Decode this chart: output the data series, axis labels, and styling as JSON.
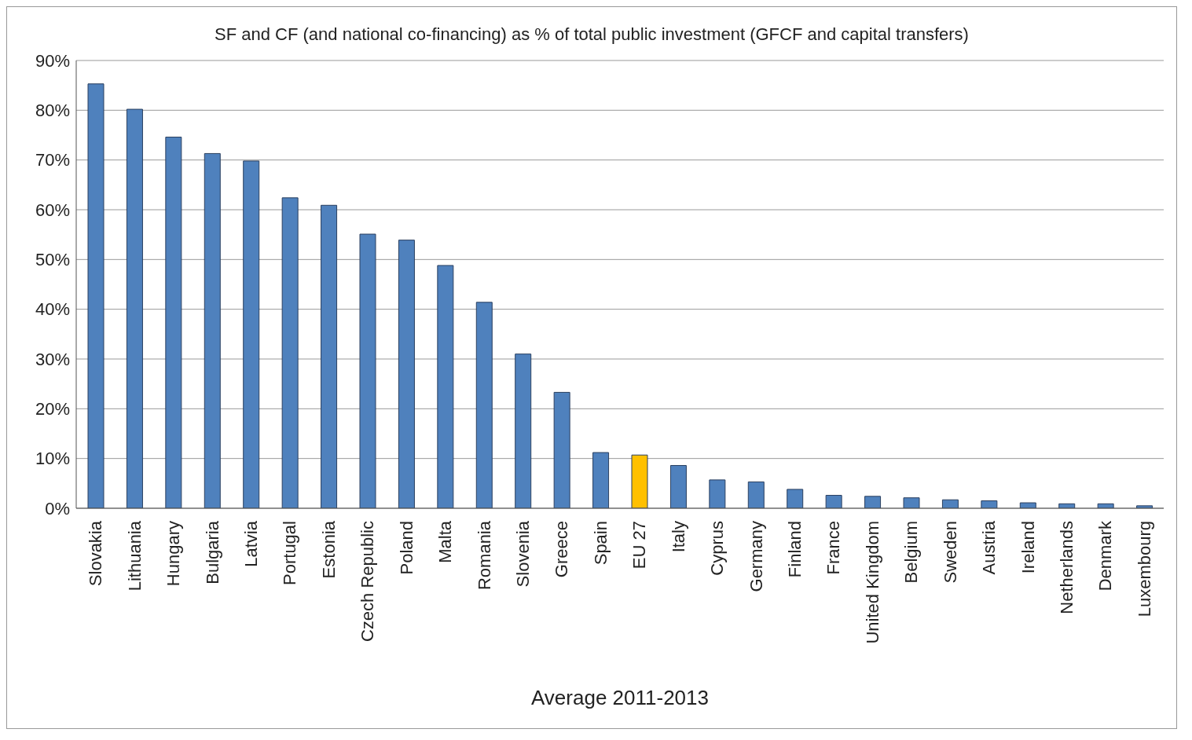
{
  "chart_data": {
    "type": "bar",
    "title": "SF and CF (and national co-financing) as % of total public investment (GFCF and capital transfers)",
    "xlabel": "Average 2011-2013",
    "categories": [
      "Slovakia",
      "Lithuania",
      "Hungary",
      "Bulgaria",
      "Latvia",
      "Portugal",
      "Estonia",
      "Czech Republic",
      "Poland",
      "Malta",
      "Romania",
      "Slovenia",
      "Greece",
      "Spain",
      "EU 27",
      "Italy",
      "Cyprus",
      "Germany",
      "Finland",
      "France",
      "United Kingdom",
      "Belgium",
      "Sweden",
      "Austria",
      "Ireland",
      "Netherlands",
      "Denmark",
      "Luxembourg"
    ],
    "values": [
      85.3,
      80.2,
      74.6,
      71.3,
      69.8,
      62.4,
      60.9,
      55.1,
      53.9,
      48.8,
      41.4,
      31.0,
      23.3,
      11.2,
      10.7,
      8.6,
      5.7,
      5.3,
      3.8,
      2.6,
      2.4,
      2.1,
      1.7,
      1.5,
      1.1,
      0.9,
      0.9,
      0.5
    ],
    "colors": [
      "#4f81bd",
      "#4f81bd",
      "#4f81bd",
      "#4f81bd",
      "#4f81bd",
      "#4f81bd",
      "#4f81bd",
      "#4f81bd",
      "#4f81bd",
      "#4f81bd",
      "#4f81bd",
      "#4f81bd",
      "#4f81bd",
      "#4f81bd",
      "#ffc000",
      "#4f81bd",
      "#4f81bd",
      "#4f81bd",
      "#4f81bd",
      "#4f81bd",
      "#4f81bd",
      "#4f81bd",
      "#4f81bd",
      "#4f81bd",
      "#4f81bd",
      "#4f81bd",
      "#4f81bd",
      "#4f81bd"
    ],
    "ylim": [
      0,
      90
    ],
    "yticks": [
      {
        "value": 0,
        "label": "0%"
      },
      {
        "value": 10,
        "label": "10%"
      },
      {
        "value": 20,
        "label": "20%"
      },
      {
        "value": 30,
        "label": "30%"
      },
      {
        "value": 40,
        "label": "40%"
      },
      {
        "value": 50,
        "label": "50%"
      },
      {
        "value": 60,
        "label": "60%"
      },
      {
        "value": 70,
        "label": "70%"
      },
      {
        "value": 80,
        "label": "80%"
      },
      {
        "value": 90,
        "label": "90%"
      }
    ],
    "grid": "y"
  }
}
